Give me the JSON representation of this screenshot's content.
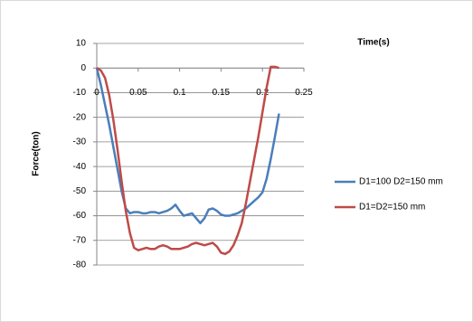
{
  "chart_data": {
    "type": "line",
    "x_label": "Time(s)",
    "y_label": "Force(ton)",
    "x": [
      0,
      0.005,
      0.01,
      0.015,
      0.02,
      0.025,
      0.03,
      0.035,
      0.04,
      0.045,
      0.05,
      0.055,
      0.06,
      0.065,
      0.07,
      0.075,
      0.08,
      0.085,
      0.09,
      0.095,
      0.1,
      0.105,
      0.11,
      0.115,
      0.12,
      0.125,
      0.13,
      0.135,
      0.14,
      0.145,
      0.15,
      0.155,
      0.16,
      0.165,
      0.17,
      0.175,
      0.18,
      0.185,
      0.19,
      0.195,
      0.2,
      0.205,
      0.21,
      0.215,
      0.22
    ],
    "series": [
      {
        "name": "D1=100 D2=150 mm",
        "color": "#4a7ebb",
        "values": [
          0,
          -7,
          -15,
          -23,
          -32,
          -41,
          -50,
          -57,
          -59,
          -58.5,
          -58.5,
          -59,
          -59,
          -58.5,
          -58.5,
          -59,
          -58.5,
          -58,
          -57,
          -55.5,
          -58,
          -60,
          -59.5,
          -59,
          -61,
          -63,
          -61,
          -57.5,
          -57,
          -58,
          -59.5,
          -60,
          -60,
          -59.5,
          -59,
          -58,
          -57,
          -55.5,
          -54,
          -52.5,
          -50.5,
          -45,
          -37,
          -28,
          -18.5
        ]
      },
      {
        "name": "D1=D2=150 mm",
        "color": "#be4b48",
        "values": [
          0,
          -1,
          -4,
          -11,
          -21,
          -33,
          -46,
          -58,
          -67,
          -73,
          -74,
          -73.5,
          -73,
          -73.5,
          -73.5,
          -72.5,
          -72,
          -72.5,
          -73.5,
          -73.5,
          -73.5,
          -73,
          -72.5,
          -71.5,
          -71,
          -71.5,
          -72,
          -71.5,
          -71,
          -72.5,
          -75,
          -75.5,
          -74.5,
          -72,
          -68,
          -63,
          -55,
          -46,
          -37,
          -28,
          -18,
          -8,
          0.5,
          0.5,
          0
        ]
      }
    ],
    "xlim": [
      0,
      0.25
    ],
    "xticks": [
      0,
      0.05,
      0.1,
      0.15,
      0.2,
      0.25
    ],
    "ylim": [
      -80,
      10
    ],
    "yticks": [
      10,
      0,
      -10,
      -20,
      -30,
      -40,
      -50,
      -60,
      -70,
      -80
    ],
    "grid": true,
    "legend": "right"
  }
}
